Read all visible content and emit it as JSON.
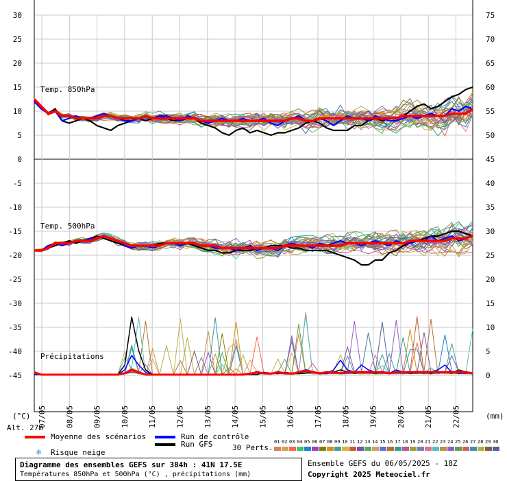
{
  "chart_data": {
    "type": "line",
    "left_axis_label": "(°C)",
    "right_axis_label": "(mm)",
    "left_ticks": [
      30,
      25,
      20,
      15,
      10,
      5,
      0,
      -5,
      -10,
      -15,
      -20,
      -25,
      -30,
      -35,
      -40,
      -45
    ],
    "right_ticks": [
      75,
      70,
      65,
      60,
      55,
      50,
      45,
      40,
      35,
      30,
      25,
      20,
      15,
      10,
      5,
      0
    ],
    "x_ticks": [
      "07/05",
      "08/05",
      "09/05",
      "10/05",
      "11/05",
      "12/05",
      "13/05",
      "14/05",
      "15/05",
      "16/05",
      "17/05",
      "18/05",
      "19/05",
      "20/05",
      "21/05",
      "22/05"
    ],
    "panel_labels": {
      "t850": "Temp. 850hPa",
      "t500": "Temp. 500hPa",
      "precip": "Précipitations"
    },
    "altitude": "Alt. 27m",
    "timesteps_hours_step": 6,
    "series": [
      {
        "name": "Moyenne des scénarios",
        "color": "#ff0000",
        "t850": [
          12.5,
          11,
          9.5,
          10,
          9,
          9,
          8.5,
          8.5,
          8.5,
          8.5,
          9,
          9,
          8.5,
          8.5,
          8.5,
          8.5,
          9,
          8.5,
          8.5,
          8.5,
          8.5,
          8.5,
          8.5,
          8.5,
          8,
          8,
          8,
          8,
          8,
          8,
          8,
          8,
          8,
          8,
          8,
          8,
          8,
          8.5,
          8.5,
          8,
          8,
          8.5,
          8.5,
          8.5,
          8.5,
          8.5,
          8.5,
          8.5,
          8.5,
          8.5,
          8.5,
          8.5,
          8.5,
          9,
          9,
          9,
          9,
          9,
          9,
          9,
          9.5,
          9.5,
          9.5,
          10.5
        ],
        "t500": [
          -19,
          -19,
          -18.5,
          -17.5,
          -17.5,
          -17.5,
          -17,
          -17,
          -17,
          -16.5,
          -16,
          -16.5,
          -17,
          -17.5,
          -18,
          -18,
          -18,
          -18,
          -18,
          -17.5,
          -17.5,
          -17.5,
          -17.5,
          -17.5,
          -18,
          -18,
          -18,
          -18.5,
          -18.5,
          -18.5,
          -18.5,
          -18.5,
          -18.5,
          -18.5,
          -18.5,
          -18.5,
          -18,
          -18,
          -18,
          -18,
          -18,
          -18,
          -18,
          -18,
          -18,
          -17.5,
          -17.5,
          -17.5,
          -17.5,
          -17.5,
          -17.5,
          -17.5,
          -17.5,
          -17.5,
          -17,
          -17,
          -17,
          -17,
          -17,
          -17,
          -16.5,
          -16.5,
          -16.5,
          -16
        ],
        "precip": [
          0.5,
          0,
          0,
          0,
          0,
          0,
          0,
          0,
          0,
          0,
          0,
          0,
          0,
          0.3,
          1,
          0.5,
          0,
          0,
          0,
          0,
          0,
          0,
          0,
          0,
          0,
          0,
          0,
          0,
          0,
          0,
          0,
          0.2,
          0.5,
          0.3,
          0.2,
          0.5,
          0.3,
          0.2,
          0.5,
          0.8,
          0.5,
          0.3,
          0.5,
          0.5,
          0.3,
          0.5,
          0.5,
          0.5,
          0.5,
          0.5,
          0.5,
          0.3,
          0.5,
          0.5,
          0.5,
          0.5,
          0.5,
          0.5,
          0.5,
          0.5,
          0.5,
          0.5,
          0.5,
          0.3
        ]
      },
      {
        "name": "Run de contrôle",
        "color": "#0000ff",
        "t850": [
          12,
          10.5,
          9.5,
          10,
          8,
          8.5,
          9,
          8.5,
          8.5,
          9,
          9.5,
          9,
          8.5,
          8,
          8,
          8.5,
          9,
          8.5,
          9,
          9,
          8.5,
          8,
          9,
          8.5,
          8,
          7.5,
          8,
          8.5,
          8,
          8,
          8.5,
          8,
          8,
          8.5,
          7.5,
          7,
          8,
          8.5,
          9,
          8,
          8,
          8.5,
          8,
          7,
          8,
          9,
          8.5,
          8.5,
          8,
          9,
          8.5,
          8,
          8,
          8.5,
          9,
          8.5,
          9,
          9.5,
          9,
          9,
          10.5,
          10,
          11,
          10.5
        ],
        "t500": [
          -19,
          -19,
          -18,
          -17.5,
          -18,
          -17.5,
          -17,
          -17,
          -16.5,
          -16.5,
          -16,
          -16.5,
          -17,
          -18,
          -18.5,
          -18,
          -18,
          -18.5,
          -18,
          -17.5,
          -17.5,
          -18,
          -17.5,
          -17.5,
          -18,
          -18,
          -18.5,
          -18.5,
          -18.5,
          -19,
          -18.5,
          -18,
          -19,
          -18.5,
          -18.5,
          -19,
          -18,
          -17.5,
          -18,
          -18,
          -18.5,
          -17.5,
          -18,
          -17.5,
          -17,
          -17.5,
          -17.5,
          -18,
          -17.5,
          -17,
          -17.5,
          -18,
          -17,
          -17.5,
          -17.5,
          -17,
          -17,
          -16,
          -17,
          -16.5,
          -16,
          -17,
          -16.5,
          -16
        ],
        "precip": [
          0,
          0,
          0,
          0,
          0,
          0,
          0,
          0,
          0,
          0,
          0,
          0,
          0,
          1,
          4,
          2,
          0.5,
          0,
          0,
          0,
          0,
          0,
          0,
          0,
          0,
          0,
          0,
          0,
          0,
          0,
          0,
          0,
          0.5,
          0.3,
          0.2,
          0.3,
          0.3,
          0.3,
          0.5,
          1,
          0.5,
          0.3,
          0.2,
          1,
          3,
          1,
          0.5,
          2,
          1,
          0.5,
          0.5,
          0.3,
          1,
          0.5,
          0.3,
          0.5,
          0.3,
          0.5,
          1,
          2,
          0.5,
          0.3,
          0.3,
          0.3
        ]
      },
      {
        "name": "Run GFS",
        "color": "#000000",
        "t850": [
          12,
          10.5,
          9.5,
          10.5,
          8,
          7.5,
          8,
          8.5,
          8,
          7,
          6.5,
          6,
          7,
          7.5,
          8,
          8.5,
          8,
          8.5,
          9,
          8.5,
          8,
          8,
          8.5,
          8.5,
          7.5,
          7,
          6.5,
          5.5,
          5,
          6,
          6.5,
          5.5,
          6,
          5.5,
          5,
          5.5,
          5.5,
          6,
          6.5,
          7.5,
          8,
          7.5,
          6.5,
          6,
          6,
          6,
          7,
          7,
          8,
          8.5,
          8,
          8.5,
          8.5,
          9,
          10,
          11,
          11.5,
          10.5,
          11,
          12,
          13,
          13.5,
          14.5,
          15
        ],
        "t500": [
          -19,
          -19,
          -18.5,
          -18,
          -17.5,
          -17,
          -17.5,
          -17,
          -16.5,
          -16,
          -16.5,
          -17,
          -17.5,
          -18,
          -18.5,
          -18,
          -18,
          -18,
          -17.5,
          -17.5,
          -17.5,
          -18,
          -17.5,
          -18,
          -18.5,
          -19,
          -19,
          -19.5,
          -19.5,
          -19,
          -19,
          -19,
          -18.5,
          -18.5,
          -18,
          -18,
          -18,
          -18.5,
          -18.5,
          -19,
          -19,
          -19,
          -19,
          -19.5,
          -20,
          -20.5,
          -21,
          -22,
          -22,
          -21,
          -21,
          -19.5,
          -19,
          -18,
          -17.5,
          -17,
          -16.5,
          -16,
          -16,
          -15.5,
          -15,
          -15,
          -15.5,
          -16
        ],
        "precip": [
          0,
          0,
          0,
          0,
          0,
          0,
          0,
          0,
          0,
          0,
          0,
          0,
          0,
          2,
          12,
          5,
          1,
          0,
          0,
          0,
          0,
          0,
          0,
          0,
          0,
          0,
          0,
          0,
          0,
          0,
          0,
          0,
          0,
          0.5,
          0.3,
          0.2,
          0.5,
          0.3,
          0.2,
          0.3,
          0.5,
          0.2,
          0.3,
          0.5,
          1,
          0.5,
          0.3,
          0.5,
          0.5,
          0.3,
          0.5,
          0.2,
          0.5,
          0.5,
          0.3,
          0.5,
          0.5,
          0.3,
          0.5,
          0.5,
          0.3,
          1,
          0.5,
          0.3
        ]
      }
    ],
    "perturbation_count": 30
  },
  "legend": {
    "mean": "Moyenne des scénarios",
    "control": "Run de contrôle",
    "gfs": "Run GFS",
    "snow": "Risque neige",
    "perts": "30 Perts.",
    "mean_color": "#ff0000",
    "control_color": "#0000ff",
    "gfs_color": "#000000",
    "snow_icon": "snowflake-icon",
    "pert_numbers": [
      "01",
      "02",
      "03",
      "04",
      "05",
      "06",
      "07",
      "08",
      "09",
      "10",
      "11",
      "12",
      "13",
      "14",
      "15",
      "16",
      "17",
      "18",
      "19",
      "20",
      "21",
      "22",
      "23",
      "24",
      "25",
      "26",
      "27",
      "28",
      "29",
      "30"
    ],
    "pert_colors": [
      "#e08060",
      "#c8a850",
      "#ff6347",
      "#40c070",
      "#2080d0",
      "#a040c0",
      "#808000",
      "#d09020",
      "#40a0a0",
      "#e0b040",
      "#c06030",
      "#8050a0",
      "#50b050",
      "#d0a070",
      "#6070d0",
      "#b07030",
      "#30a080",
      "#c050a0",
      "#a0a030",
      "#7080c0",
      "#e07090",
      "#50c0c0",
      "#c09040",
      "#9060c0",
      "#60a040",
      "#d06060",
      "#4090b0",
      "#b0b040",
      "#806040",
      "#5060a0"
    ]
  },
  "infobox": {
    "title": "Diagramme des ensembles GEFS sur 384h : 41N 17.5E",
    "subtitle": "Températures 850hPa et 500hPa (°C) , précipitations (mm)"
  },
  "footer": {
    "run": "Ensemble GEFS du 06/05/2025 - 18Z",
    "copyright": "Copyright 2025 Meteociel.fr"
  }
}
